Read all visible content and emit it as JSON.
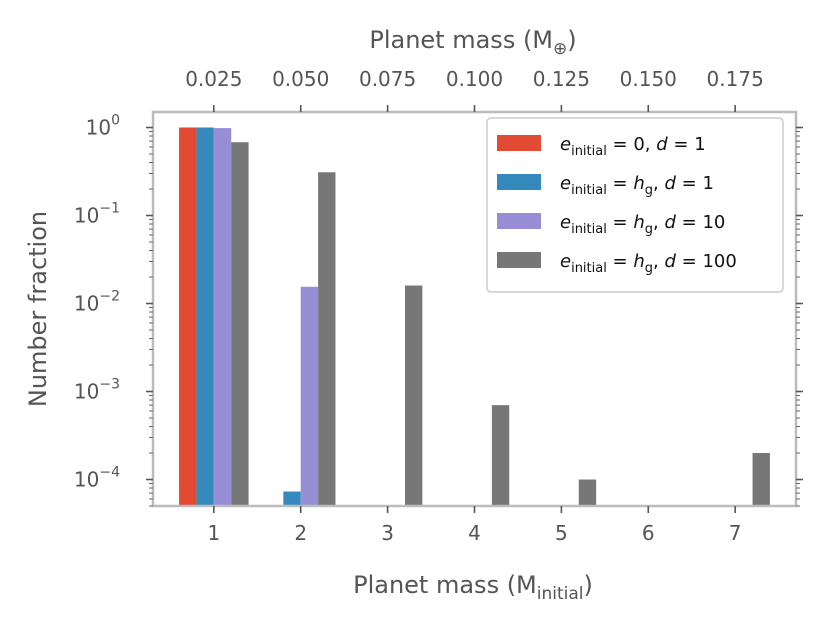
{
  "chart_data": {
    "type": "bar",
    "y_scale": "log",
    "ylim": [
      5e-05,
      1.5
    ],
    "xlim": [
      0.3,
      7.7
    ],
    "categories": [
      1,
      2,
      3,
      4,
      5,
      6,
      7
    ],
    "xlabel": "Planet mass (M",
    "xlabel_sub": "initial",
    "xlabel_end": ")",
    "ylabel": "Number fraction",
    "top_xlabel": "Planet mass (M",
    "top_xlabel_sub": "⊕",
    "top_xlabel_end": ")",
    "x_ticks": [
      "1",
      "2",
      "3",
      "4",
      "5",
      "6",
      "7"
    ],
    "top_ticks": [
      "0.025",
      "0.050",
      "0.075",
      "0.100",
      "0.125",
      "0.150",
      "0.175"
    ],
    "y_ticks": [
      {
        "base": "10",
        "exp": "0",
        "value": 1
      },
      {
        "base": "10",
        "exp": "−1",
        "value": 0.1
      },
      {
        "base": "10",
        "exp": "−2",
        "value": 0.01
      },
      {
        "base": "10",
        "exp": "−3",
        "value": 0.001
      },
      {
        "base": "10",
        "exp": "−4",
        "value": 0.0001
      }
    ],
    "series": [
      {
        "name": "e_initial = 0, d = 1",
        "legend": [
          "e",
          "initial",
          " = 0, ",
          "d",
          " = 1"
        ],
        "color": "#E24A33",
        "values": [
          1.0,
          null,
          null,
          null,
          null,
          null,
          null
        ]
      },
      {
        "name": "e_initial = h_g, d = 1",
        "legend": [
          "e",
          "initial",
          " = ",
          "h",
          "g",
          ", ",
          "d",
          " = 1"
        ],
        "color": "#348ABD",
        "values": [
          1.0,
          7.3e-05,
          null,
          null,
          null,
          null,
          null
        ]
      },
      {
        "name": "e_initial = h_g, d = 10",
        "legend": [
          "e",
          "initial",
          " = ",
          "h",
          "g",
          ", ",
          "d",
          " = 10"
        ],
        "color": "#988ED5",
        "values": [
          0.985,
          0.0155,
          null,
          null,
          null,
          null,
          null
        ]
      },
      {
        "name": "e_initial = h_g, d = 100",
        "legend": [
          "e",
          "initial",
          " = ",
          "h",
          "g",
          ", ",
          "d",
          " = 100"
        ],
        "color": "#777777",
        "values": [
          0.68,
          0.31,
          0.016,
          0.0007,
          0.0001,
          null,
          0.0002
        ]
      }
    ],
    "legend_position": "top-right"
  }
}
